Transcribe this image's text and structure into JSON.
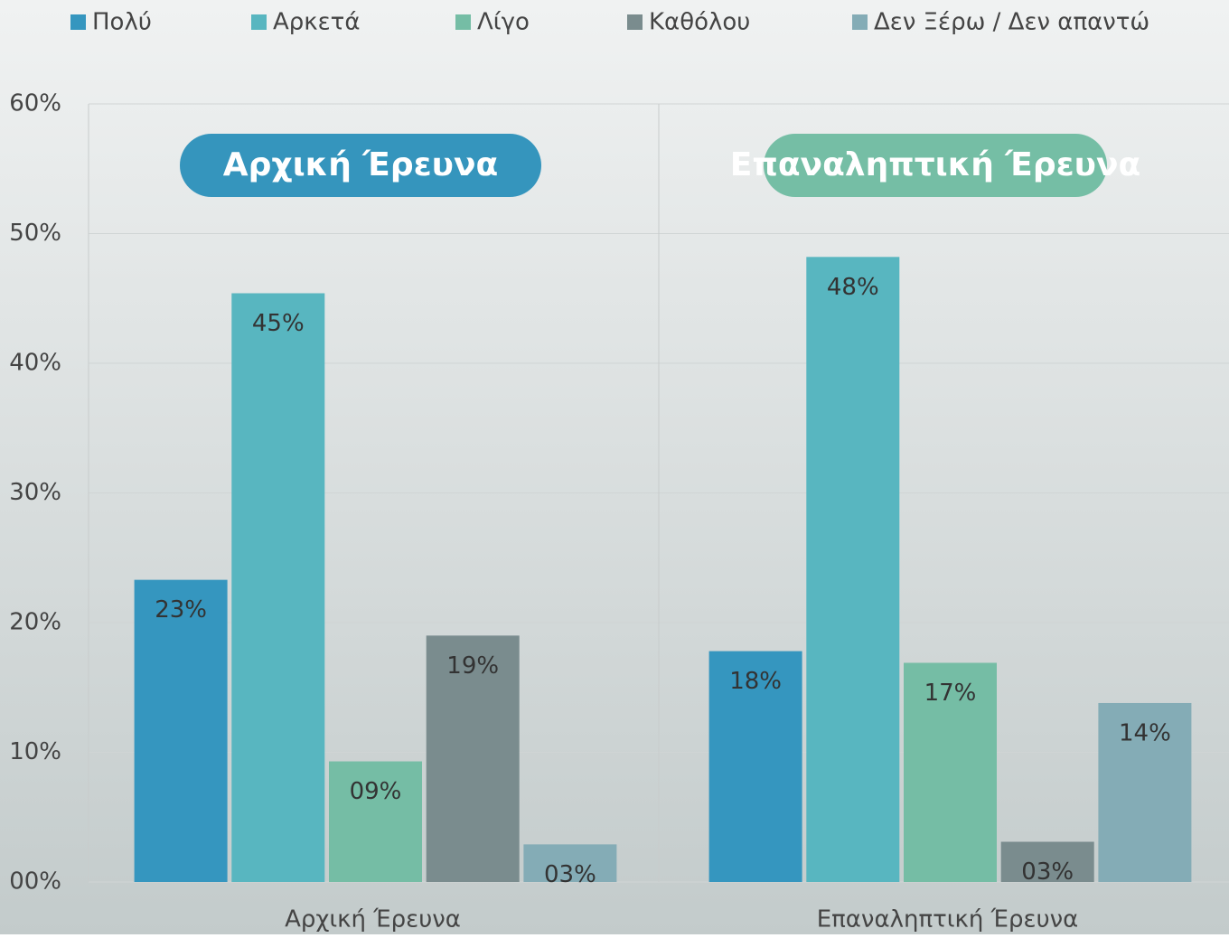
{
  "chart_data": {
    "type": "bar",
    "categories": [
      "Αρχική Έρευνα",
      "Επαναληπτική Έρευνα"
    ],
    "series": [
      {
        "name": "Πολύ",
        "color": "#3596bf",
        "values": [
          23.3,
          17.8
        ],
        "value_labels": [
          "23%",
          "18%"
        ]
      },
      {
        "name": "Αρκετά",
        "color": "#58b6c0",
        "values": [
          45.4,
          48.2
        ],
        "value_labels": [
          "45%",
          "48%"
        ]
      },
      {
        "name": "Λίγο",
        "color": "#75bda5",
        "values": [
          9.3,
          16.9
        ],
        "value_labels": [
          "09%",
          "17%"
        ]
      },
      {
        "name": "Καθόλου",
        "color": "#7a8c8e",
        "values": [
          19.0,
          3.1
        ],
        "value_labels": [
          "19%",
          "03%"
        ]
      },
      {
        "name": "Δεν Ξέρω / Δεν απαντώ",
        "color": "#84acb6",
        "values": [
          2.9,
          13.8
        ],
        "value_labels": [
          "03%",
          "14%"
        ]
      }
    ],
    "annotations": [
      {
        "text": "Αρχική Έρευνα",
        "color": "#3595bd"
      },
      {
        "text": "Επαναληπτική Έρευνα",
        "color": "#75bea5"
      }
    ],
    "ylim": [
      0,
      60
    ],
    "yticks": [
      {
        "value": 0,
        "label": "00%"
      },
      {
        "value": 10,
        "label": "10%"
      },
      {
        "value": 20,
        "label": "20%"
      },
      {
        "value": 30,
        "label": "30%"
      },
      {
        "value": 40,
        "label": "40%"
      },
      {
        "value": 50,
        "label": "50%"
      },
      {
        "value": 60,
        "label": "60%"
      }
    ],
    "grid": true,
    "legend": "top"
  }
}
